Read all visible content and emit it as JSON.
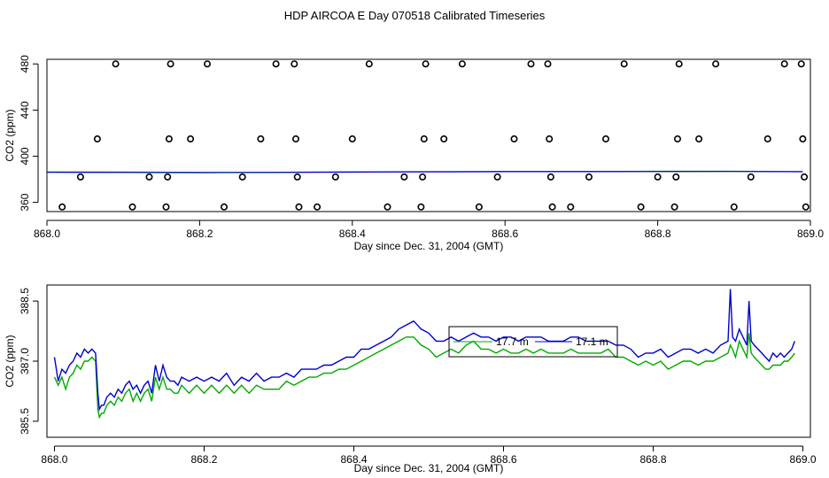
{
  "title": "HDP AIRCOA E  Day 070518  Calibrated Timeseries",
  "chart_data": [
    {
      "type": "scatter",
      "xlabel": "Day since Dec. 31, 2004 (GMT)",
      "ylabel": "CO2 (ppm)",
      "xlim": [
        868.0,
        869.0
      ],
      "ylim": [
        352,
        484
      ],
      "xticks": [
        "868.0",
        "868.2",
        "868.4",
        "868.6",
        "868.8",
        "869.0"
      ],
      "xtick_values": [
        868.0,
        868.2,
        868.4,
        868.6,
        868.8,
        869.0
      ],
      "yticks": [
        "360",
        "400",
        "440",
        "480"
      ],
      "ytick_values": [
        360,
        400,
        440,
        480
      ],
      "grid": false,
      "colors": {
        "line_blue": "#0000cc",
        "line_green": "#00aa00",
        "points": "#000000"
      },
      "points": {
        "marker": "open-circle",
        "x": [
          868.02,
          868.044,
          868.066,
          868.09,
          868.112,
          868.134,
          868.156,
          868.158,
          868.16,
          868.162,
          868.188,
          868.21,
          868.232,
          868.256,
          868.28,
          868.3,
          868.324,
          868.326,
          868.328,
          868.33,
          868.354,
          868.378,
          868.4,
          868.422,
          868.446,
          868.468,
          868.49,
          868.492,
          868.494,
          868.496,
          868.52,
          868.544,
          868.566,
          868.59,
          868.612,
          868.634,
          868.656,
          868.658,
          868.66,
          868.662,
          868.686,
          868.71,
          868.732,
          868.756,
          868.778,
          868.8,
          868.822,
          868.824,
          868.826,
          868.828,
          868.854,
          868.876,
          868.9,
          868.922,
          868.944,
          868.966,
          868.988,
          868.99,
          868.992,
          868.994
        ],
        "y": [
          356,
          382,
          415,
          480,
          356,
          382,
          356,
          382,
          415,
          480,
          415,
          480,
          356,
          382,
          415,
          480,
          480,
          415,
          382,
          356,
          356,
          382,
          415,
          480,
          356,
          382,
          356,
          382,
          415,
          480,
          415,
          480,
          356,
          382,
          415,
          480,
          480,
          415,
          382,
          356,
          356,
          382,
          415,
          480,
          356,
          382,
          356,
          382,
          415,
          480,
          415,
          480,
          356,
          382,
          415,
          480,
          480,
          415,
          382,
          356
        ]
      },
      "series": [
        {
          "x": [
            868.0,
            868.1,
            868.2,
            868.3,
            868.4,
            868.5,
            868.6,
            868.7,
            868.8,
            868.9,
            868.99
          ],
          "values": [
            386.4,
            386.2,
            386.0,
            386.1,
            386.4,
            386.6,
            386.8,
            386.8,
            386.9,
            386.9,
            386.7
          ]
        },
        {
          "x": [
            868.0,
            868.1,
            868.2,
            868.3,
            868.4,
            868.5,
            868.6,
            868.7,
            868.8,
            868.9,
            868.99
          ],
          "values": [
            386.0,
            385.9,
            385.8,
            385.9,
            386.2,
            386.4,
            386.6,
            386.6,
            386.7,
            386.8,
            386.5
          ]
        }
      ]
    },
    {
      "type": "line",
      "xlabel": "Day since Dec. 31, 2004 (GMT)",
      "ylabel": "CO2 (ppm)",
      "xlim": [
        867.99,
        869.01
      ],
      "ylim": [
        385.1,
        388.9
      ],
      "xticks": [
        "868.0",
        "868.2",
        "868.4",
        "868.6",
        "868.8",
        "869.0"
      ],
      "xtick_values": [
        868.0,
        868.2,
        868.4,
        868.6,
        868.8,
        869.0
      ],
      "yticks": [
        "385.5",
        "387.0",
        "388.5"
      ],
      "ytick_values": [
        385.5,
        387.0,
        388.5
      ],
      "grid": false,
      "legend_position": "center-top",
      "series": [
        {
          "name": "17.1 m",
          "color": "#0000cc",
          "x": [
            868.0,
            868.005,
            868.01,
            868.015,
            868.02,
            868.025,
            868.03,
            868.035,
            868.04,
            868.045,
            868.05,
            868.055,
            868.058,
            868.06,
            868.063,
            868.066,
            868.07,
            868.075,
            868.08,
            868.085,
            868.09,
            868.095,
            868.1,
            868.105,
            868.11,
            868.115,
            868.12,
            868.125,
            868.13,
            868.135,
            868.14,
            868.145,
            868.15,
            868.155,
            868.16,
            868.165,
            868.17,
            868.18,
            868.19,
            868.2,
            868.21,
            868.22,
            868.23,
            868.24,
            868.25,
            868.26,
            868.27,
            868.28,
            868.29,
            868.3,
            868.31,
            868.32,
            868.33,
            868.34,
            868.35,
            868.36,
            868.37,
            868.38,
            868.39,
            868.4,
            868.41,
            868.42,
            868.43,
            868.44,
            868.45,
            868.46,
            868.47,
            868.48,
            868.49,
            868.5,
            868.51,
            868.52,
            868.53,
            868.54,
            868.55,
            868.56,
            868.57,
            868.58,
            868.59,
            868.6,
            868.61,
            868.62,
            868.63,
            868.64,
            868.65,
            868.66,
            868.67,
            868.68,
            868.69,
            868.7,
            868.71,
            868.72,
            868.73,
            868.74,
            868.75,
            868.76,
            868.77,
            868.78,
            868.79,
            868.8,
            868.81,
            868.82,
            868.83,
            868.84,
            868.85,
            868.86,
            868.87,
            868.88,
            868.89,
            868.9,
            868.903,
            868.906,
            868.91,
            868.915,
            868.92,
            868.925,
            868.928,
            868.931,
            868.935,
            868.94,
            868.945,
            868.95,
            868.955,
            868.96,
            868.965,
            868.97,
            868.975,
            868.98,
            868.985,
            868.989
          ],
          "values": [
            387.1,
            386.5,
            386.8,
            386.7,
            386.9,
            387.0,
            387.2,
            387.1,
            387.3,
            387.2,
            387.3,
            387.2,
            386.2,
            385.8,
            385.9,
            385.9,
            386.1,
            386.2,
            386.1,
            386.3,
            386.2,
            386.4,
            386.5,
            386.3,
            386.4,
            386.2,
            386.4,
            386.5,
            386.2,
            386.9,
            386.5,
            386.9,
            386.6,
            386.5,
            386.5,
            386.4,
            386.6,
            386.5,
            386.6,
            386.5,
            386.6,
            386.5,
            386.7,
            386.4,
            386.6,
            386.5,
            386.7,
            386.5,
            386.6,
            386.6,
            386.7,
            386.6,
            386.8,
            386.8,
            386.8,
            386.9,
            386.9,
            387.0,
            387.1,
            387.1,
            387.3,
            387.3,
            387.4,
            387.5,
            387.6,
            387.8,
            387.9,
            388.0,
            387.8,
            387.7,
            387.5,
            387.5,
            387.6,
            387.5,
            387.6,
            387.7,
            387.6,
            387.6,
            387.5,
            387.6,
            387.6,
            387.5,
            387.6,
            387.6,
            387.6,
            387.5,
            387.5,
            387.5,
            387.6,
            387.6,
            387.5,
            387.5,
            387.5,
            387.5,
            387.4,
            387.4,
            387.3,
            387.1,
            387.2,
            387.2,
            387.3,
            387.1,
            387.2,
            387.3,
            387.3,
            387.2,
            387.3,
            387.2,
            387.4,
            387.5,
            388.8,
            387.6,
            387.5,
            387.8,
            387.6,
            387.4,
            388.5,
            387.5,
            387.4,
            387.3,
            387.2,
            387.1,
            387.0,
            387.2,
            387.1,
            387.2,
            387.1,
            387.2,
            387.3,
            387.5
          ]
        },
        {
          "name": "17.7 m",
          "color": "#00aa00",
          "x": [
            868.0,
            868.005,
            868.01,
            868.015,
            868.02,
            868.025,
            868.03,
            868.035,
            868.04,
            868.045,
            868.05,
            868.055,
            868.058,
            868.06,
            868.063,
            868.066,
            868.07,
            868.075,
            868.08,
            868.085,
            868.09,
            868.095,
            868.1,
            868.105,
            868.11,
            868.115,
            868.12,
            868.125,
            868.13,
            868.135,
            868.14,
            868.145,
            868.15,
            868.155,
            868.16,
            868.165,
            868.17,
            868.18,
            868.19,
            868.2,
            868.21,
            868.22,
            868.23,
            868.24,
            868.25,
            868.26,
            868.27,
            868.28,
            868.29,
            868.3,
            868.31,
            868.32,
            868.33,
            868.34,
            868.35,
            868.36,
            868.37,
            868.38,
            868.39,
            868.4,
            868.41,
            868.42,
            868.43,
            868.44,
            868.45,
            868.46,
            868.47,
            868.48,
            868.49,
            868.5,
            868.51,
            868.52,
            868.53,
            868.54,
            868.55,
            868.56,
            868.57,
            868.58,
            868.59,
            868.6,
            868.61,
            868.62,
            868.63,
            868.64,
            868.65,
            868.66,
            868.67,
            868.68,
            868.69,
            868.7,
            868.71,
            868.72,
            868.73,
            868.74,
            868.75,
            868.76,
            868.77,
            868.78,
            868.79,
            868.8,
            868.81,
            868.82,
            868.83,
            868.84,
            868.85,
            868.86,
            868.87,
            868.88,
            868.89,
            868.9,
            868.903,
            868.906,
            868.91,
            868.915,
            868.92,
            868.925,
            868.928,
            868.931,
            868.935,
            868.94,
            868.945,
            868.95,
            868.955,
            868.96,
            868.965,
            868.97,
            868.975,
            868.98,
            868.985,
            868.989
          ],
          "values": [
            386.6,
            386.4,
            386.6,
            386.3,
            386.6,
            386.7,
            386.9,
            386.8,
            387.0,
            387.0,
            387.1,
            387.0,
            385.8,
            385.6,
            385.7,
            385.7,
            385.9,
            386.0,
            385.9,
            386.1,
            386.0,
            386.2,
            386.3,
            386.0,
            386.2,
            386.0,
            386.2,
            386.3,
            386.0,
            386.6,
            386.3,
            386.6,
            386.3,
            386.3,
            386.2,
            386.2,
            386.4,
            386.2,
            386.4,
            386.2,
            386.4,
            386.2,
            386.4,
            386.2,
            386.4,
            386.2,
            386.4,
            386.3,
            386.3,
            386.3,
            386.5,
            386.4,
            386.5,
            386.6,
            386.6,
            386.7,
            386.7,
            386.8,
            386.8,
            386.9,
            387.0,
            387.1,
            387.2,
            387.3,
            387.4,
            387.5,
            387.6,
            387.6,
            387.4,
            387.3,
            387.1,
            387.2,
            387.3,
            387.2,
            387.4,
            387.5,
            387.3,
            387.3,
            387.2,
            387.3,
            387.2,
            387.2,
            387.3,
            387.2,
            387.3,
            387.2,
            387.2,
            387.2,
            387.3,
            387.2,
            387.2,
            387.2,
            387.2,
            387.3,
            387.1,
            387.1,
            387.0,
            386.9,
            387.0,
            386.9,
            387.0,
            386.8,
            386.9,
            387.0,
            387.0,
            386.9,
            387.0,
            387.0,
            387.1,
            387.2,
            387.4,
            387.3,
            387.1,
            387.5,
            387.3,
            387.1,
            387.7,
            387.2,
            387.1,
            387.0,
            386.9,
            386.8,
            386.8,
            386.9,
            386.9,
            386.9,
            387.0,
            387.0,
            387.1,
            387.2
          ]
        }
      ]
    }
  ]
}
